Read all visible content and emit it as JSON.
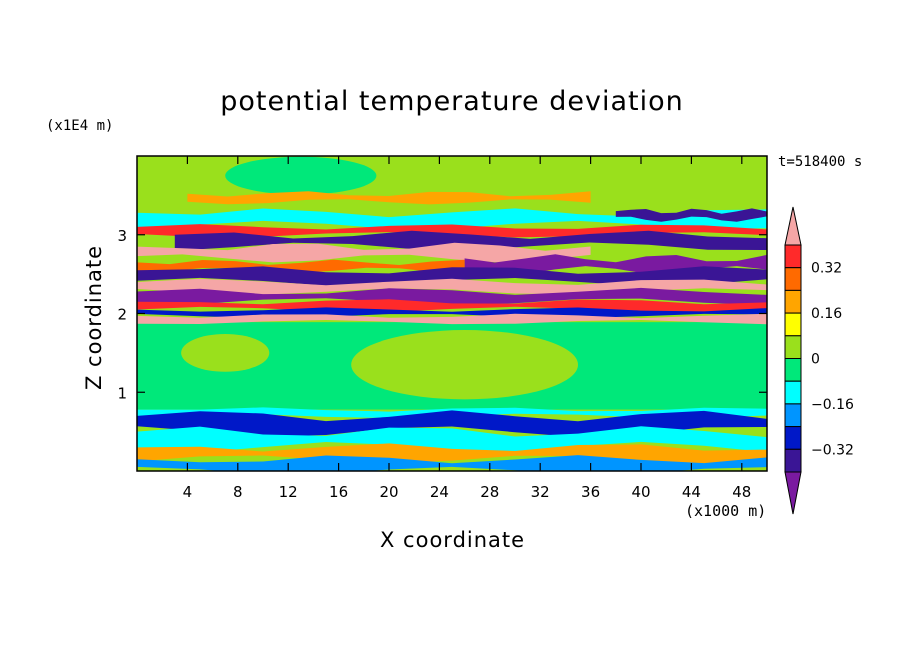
{
  "title": "potential temperature deviation",
  "time_label": "t=518400 s",
  "chart_data": {
    "type": "heatmap",
    "title": "potential temperature deviation",
    "xlabel": "X coordinate",
    "ylabel": "Z coordinate",
    "x_unit": "(x1000 m)",
    "y_unit": "(x1E4 m)",
    "xlim": [
      0,
      50
    ],
    "ylim": [
      0,
      4
    ],
    "x_ticks": [
      4,
      8,
      12,
      16,
      20,
      24,
      28,
      32,
      36,
      40,
      44,
      48
    ],
    "y_ticks": [
      1,
      2,
      3
    ],
    "colorbar": {
      "tick_values": [
        0.32,
        0.16,
        0,
        -0.16,
        -0.32
      ],
      "tick_labels": [
        "0.32",
        "0.16",
        "0",
        "−0.16",
        "−0.32"
      ],
      "levels_top_to_bottom": [
        "#f5a6a6",
        "#ff2a2a",
        "#ff6a00",
        "#ffa500",
        "#ffff00",
        "#9ae01c",
        "#00e87a",
        "#00ffff",
        "#0095ff",
        "#0018c8",
        "#3a1595",
        "#7a1aa0"
      ],
      "extend": "both"
    },
    "background_field": "#9ae01c",
    "bands": [
      {
        "z0": 3.42,
        "z1": 3.52,
        "color": "#ffa500",
        "x0": 4,
        "x1": 36
      },
      {
        "z0": 3.12,
        "z1": 3.28,
        "color": "#00ffff",
        "x0": 0,
        "x1": 50
      },
      {
        "z0": 3.2,
        "z1": 3.3,
        "color": "#3a1595",
        "x0": 38,
        "x1": 50
      },
      {
        "z0": 3.0,
        "z1": 3.1,
        "color": "#ff2a2a",
        "x0": 0,
        "x1": 50
      },
      {
        "z0": 2.85,
        "z1": 3.0,
        "color": "#3a1595",
        "x0": 3,
        "x1": 50
      },
      {
        "z0": 2.7,
        "z1": 2.85,
        "color": "#f5a6a6",
        "x0": 0,
        "x1": 36
      },
      {
        "z0": 2.55,
        "z1": 2.7,
        "color": "#7a1aa0",
        "x0": 26,
        "x1": 50
      },
      {
        "z0": 2.55,
        "z1": 2.65,
        "color": "#ff6a00",
        "x0": 0,
        "x1": 26
      },
      {
        "z0": 2.4,
        "z1": 2.55,
        "color": "#3a1595",
        "x0": 0,
        "x1": 50
      },
      {
        "z0": 2.28,
        "z1": 2.4,
        "color": "#f5a6a6",
        "x0": 0,
        "x1": 50
      },
      {
        "z0": 2.15,
        "z1": 2.28,
        "color": "#7a1aa0",
        "x0": 0,
        "x1": 50
      },
      {
        "z0": 2.05,
        "z1": 2.15,
        "color": "#ff2a2a",
        "x0": 0,
        "x1": 50
      },
      {
        "z0": 1.97,
        "z1": 2.05,
        "color": "#0018c8",
        "x0": 0,
        "x1": 50
      },
      {
        "z0": 1.89,
        "z1": 1.97,
        "color": "#f5a6a6",
        "x0": 0,
        "x1": 50
      },
      {
        "z0": 0.7,
        "z1": 0.78,
        "color": "#00ffff",
        "x0": 0,
        "x1": 50
      },
      {
        "z0": 0.5,
        "z1": 0.7,
        "color": "#0018c8",
        "x0": 0,
        "x1": 50
      },
      {
        "z0": 0.3,
        "z1": 0.5,
        "color": "#00ffff",
        "x0": 0,
        "x1": 50
      },
      {
        "z0": 0.15,
        "z1": 0.3,
        "color": "#ffa500",
        "x0": 0,
        "x1": 50
      },
      {
        "z0": 0.0,
        "z1": 0.15,
        "color": "#0095ff",
        "x0": 0,
        "x1": 50
      }
    ],
    "lower_field": {
      "z0": 0.78,
      "z1": 1.89,
      "color": "#00e87a"
    },
    "top_field": {
      "z0": 3.52,
      "z1": 4.0,
      "color": "#9ae01c"
    }
  }
}
